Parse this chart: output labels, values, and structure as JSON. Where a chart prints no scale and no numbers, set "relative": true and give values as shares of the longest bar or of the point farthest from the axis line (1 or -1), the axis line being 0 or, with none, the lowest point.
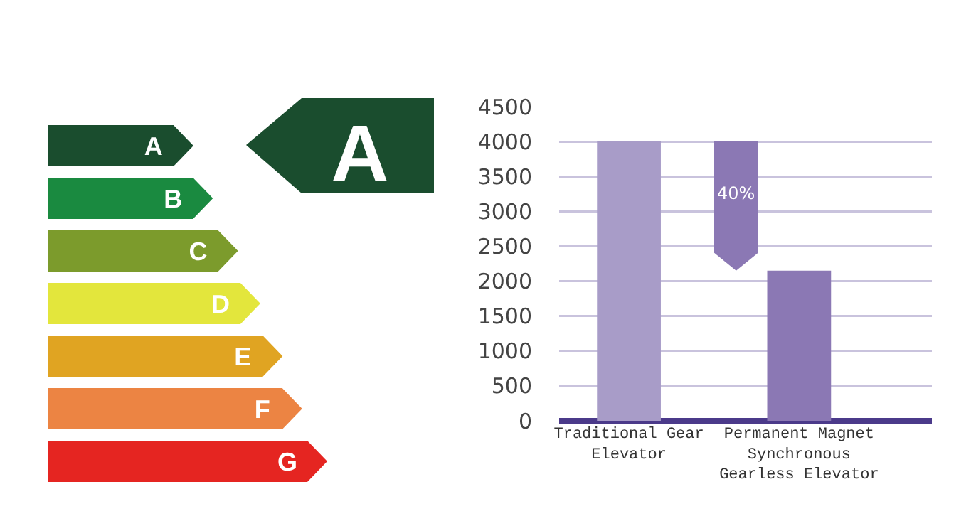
{
  "chart_data": [
    {
      "type": "bar",
      "categories": [
        "Traditional Gear Elevator",
        "Permanent Magnet Synchronous Gearless Elevator"
      ],
      "colors": [
        "#a89cc8",
        "#8b78b4"
      ],
      "values": [
        4000,
        2150
      ],
      "ylim": [
        0,
        4500
      ],
      "yticks": [
        0,
        500,
        1000,
        1500,
        2000,
        2500,
        3000,
        3500,
        4000,
        4500
      ],
      "grid": "y",
      "annotations": [
        "40%"
      ]
    },
    {
      "type": "bar",
      "orientation": "horizontal",
      "relative": true,
      "categories": [
        "A",
        "B",
        "C",
        "D",
        "E",
        "F",
        "G"
      ],
      "values": [
        0.52,
        0.59,
        0.68,
        0.76,
        0.84,
        0.91,
        1
      ],
      "colors": [
        "#1a4d2e",
        "#1a8a40",
        "#7c9b2c",
        "#e3e63c",
        "#e0a422",
        "#ec8443",
        "#e52521"
      ],
      "annotations": [
        "A"
      ]
    }
  ]
}
